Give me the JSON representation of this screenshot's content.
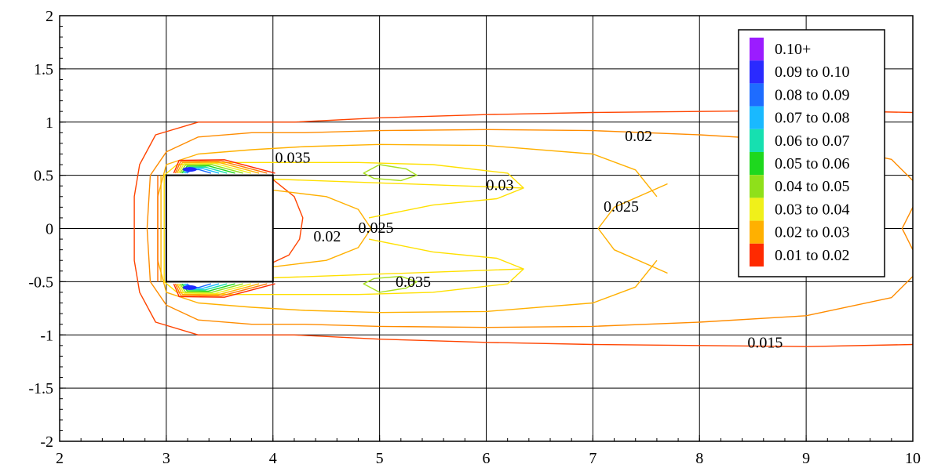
{
  "chart_data": {
    "type": "contour",
    "title": "",
    "xlabel": "",
    "ylabel": "",
    "xlim": [
      2,
      10
    ],
    "ylim": [
      -2,
      2
    ],
    "x_ticks": [
      "2",
      "3",
      "4",
      "5",
      "6",
      "7",
      "8",
      "9",
      "10"
    ],
    "y_ticks": [
      "2",
      "1.5",
      "1",
      "0.5",
      "0",
      "-0.5",
      "-1",
      "-1.5",
      "-2"
    ],
    "grid": true,
    "obstacle": {
      "x": [
        3,
        4
      ],
      "y": [
        -0.5,
        0.5
      ]
    },
    "legend": {
      "placement": "top-right",
      "entries": [
        {
          "label": "0.10+",
          "color": "#9b1cff"
        },
        {
          "label": "0.09 to 0.10",
          "color": "#2a2aff"
        },
        {
          "label": "0.08 to 0.09",
          "color": "#1e6cff"
        },
        {
          "label": "0.07 to 0.08",
          "color": "#19b9ff"
        },
        {
          "label": "0.06 to 0.07",
          "color": "#16e0b0"
        },
        {
          "label": "0.05 to 0.06",
          "color": "#1ed81e"
        },
        {
          "label": "0.04 to 0.05",
          "color": "#8fe01a"
        },
        {
          "label": "0.03 to 0.04",
          "color": "#f0f01a"
        },
        {
          "label": "0.02 to 0.03",
          "color": "#ffb000"
        },
        {
          "label": "0.01 to 0.02",
          "color": "#ff2a00"
        }
      ]
    },
    "contour_labels": [
      {
        "text": "0.035",
        "x": 4.02,
        "y": 0.62
      },
      {
        "text": "0.02",
        "x": 7.3,
        "y": 0.82
      },
      {
        "text": "0.03",
        "x": 6.0,
        "y": 0.36
      },
      {
        "text": "0.025",
        "x": 7.1,
        "y": 0.16
      },
      {
        "text": "0.02",
        "x": 4.38,
        "y": -0.12
      },
      {
        "text": "0.025",
        "x": 4.8,
        "y": -0.04
      },
      {
        "text": "0.035",
        "x": 5.15,
        "y": -0.55
      },
      {
        "text": "0.015",
        "x": 8.45,
        "y": -1.12
      }
    ]
  }
}
